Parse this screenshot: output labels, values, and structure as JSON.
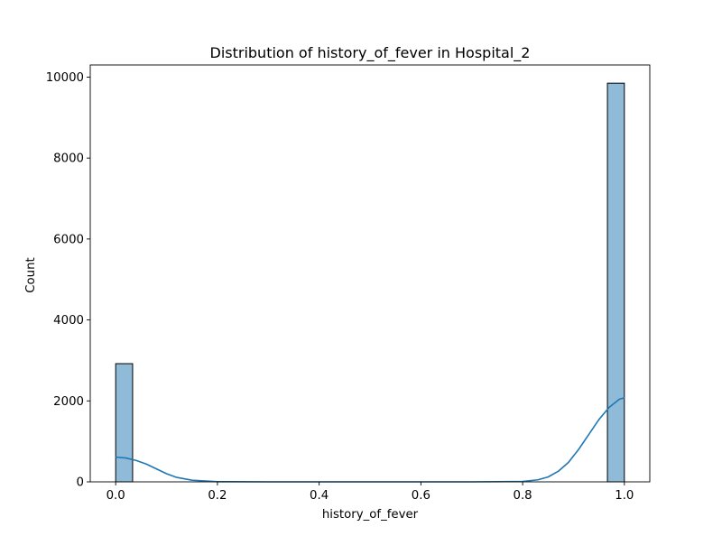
{
  "chart_data": {
    "type": "bar",
    "title": "Distribution of history_of_fever in Hospital_2",
    "xlabel": "history_of_fever",
    "ylabel": "Count",
    "xlim": [
      -0.05,
      1.05
    ],
    "ylim": [
      0,
      10300
    ],
    "x_ticks": [
      0.0,
      0.2,
      0.4,
      0.6,
      0.8,
      1.0
    ],
    "x_tick_labels": [
      "0.0",
      "0.2",
      "0.4",
      "0.6",
      "0.8",
      "1.0"
    ],
    "y_ticks": [
      0,
      2000,
      4000,
      6000,
      8000,
      10000
    ],
    "y_tick_labels": [
      "0",
      "2000",
      "4000",
      "6000",
      "8000",
      "10000"
    ],
    "grid": false,
    "bin_width": 0.0333,
    "bins": [
      {
        "x_start": 0.0,
        "x_end": 0.0333,
        "count": 2920
      },
      {
        "x_start": 0.9667,
        "x_end": 1.0,
        "count": 9850
      }
    ],
    "kde": {
      "x": [
        0.0,
        0.02,
        0.04,
        0.06,
        0.08,
        0.1,
        0.12,
        0.15,
        0.2,
        0.3,
        0.5,
        0.7,
        0.8,
        0.83,
        0.85,
        0.87,
        0.89,
        0.91,
        0.93,
        0.95,
        0.97,
        0.99,
        1.0
      ],
      "y": [
        610,
        590,
        530,
        440,
        320,
        200,
        110,
        40,
        5,
        0,
        0,
        0,
        10,
        50,
        120,
        260,
        480,
        800,
        1170,
        1540,
        1840,
        2040,
        2080
      ]
    },
    "colors": {
      "bar_fill": "#1f77b4",
      "bar_fill_opacity": 0.5,
      "bar_edge": "#000000",
      "kde_line": "#1f77b4"
    }
  }
}
